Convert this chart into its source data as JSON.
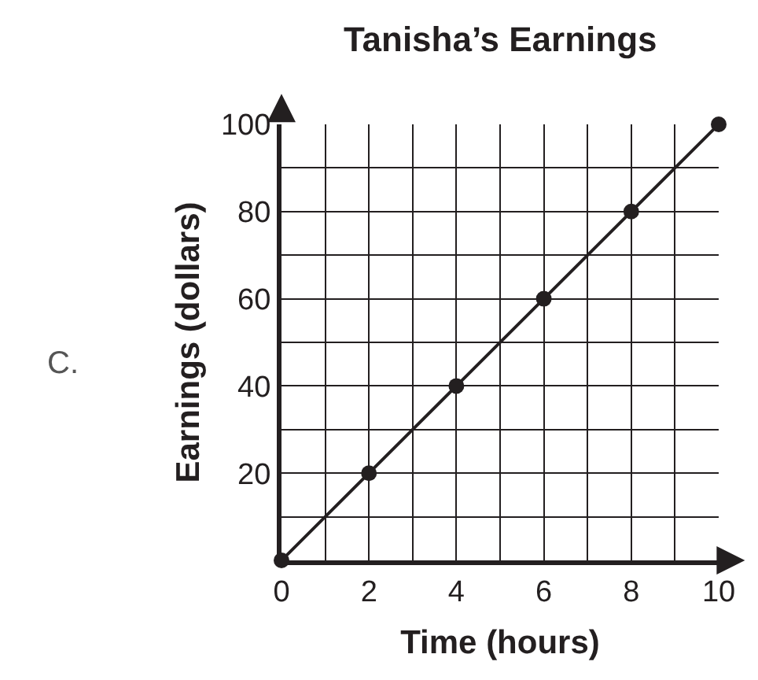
{
  "chart_data": {
    "type": "line",
    "title": "Tanisha’s Earnings",
    "xlabel": "Time (hours)",
    "ylabel": "Earnings (dollars)",
    "annotations": [
      "C."
    ],
    "x": [
      0,
      2,
      4,
      6,
      8,
      10
    ],
    "series": [
      {
        "color": "#231f20",
        "values": [
          0,
          20,
          40,
          60,
          80,
          100
        ]
      }
    ],
    "xlim": [
      0,
      10
    ],
    "xticks": [
      0,
      {
        "value": 1,
        "label": null
      },
      2,
      {
        "value": 3,
        "label": null
      },
      4,
      {
        "value": 5,
        "label": null
      },
      6,
      {
        "value": 7,
        "label": null
      },
      8,
      {
        "value": 9,
        "label": null
      },
      10
    ],
    "ylim": [
      0,
      100
    ],
    "yticks": [
      {
        "value": 0,
        "label": null
      },
      {
        "value": 10,
        "label": null
      },
      20,
      {
        "value": 30,
        "label": null
      },
      40,
      {
        "value": 50,
        "label": null
      },
      60,
      {
        "value": 70,
        "label": null
      },
      80,
      {
        "value": 90,
        "label": null
      },
      100
    ],
    "grid": true,
    "marker": "circle",
    "line_style": "solid"
  }
}
